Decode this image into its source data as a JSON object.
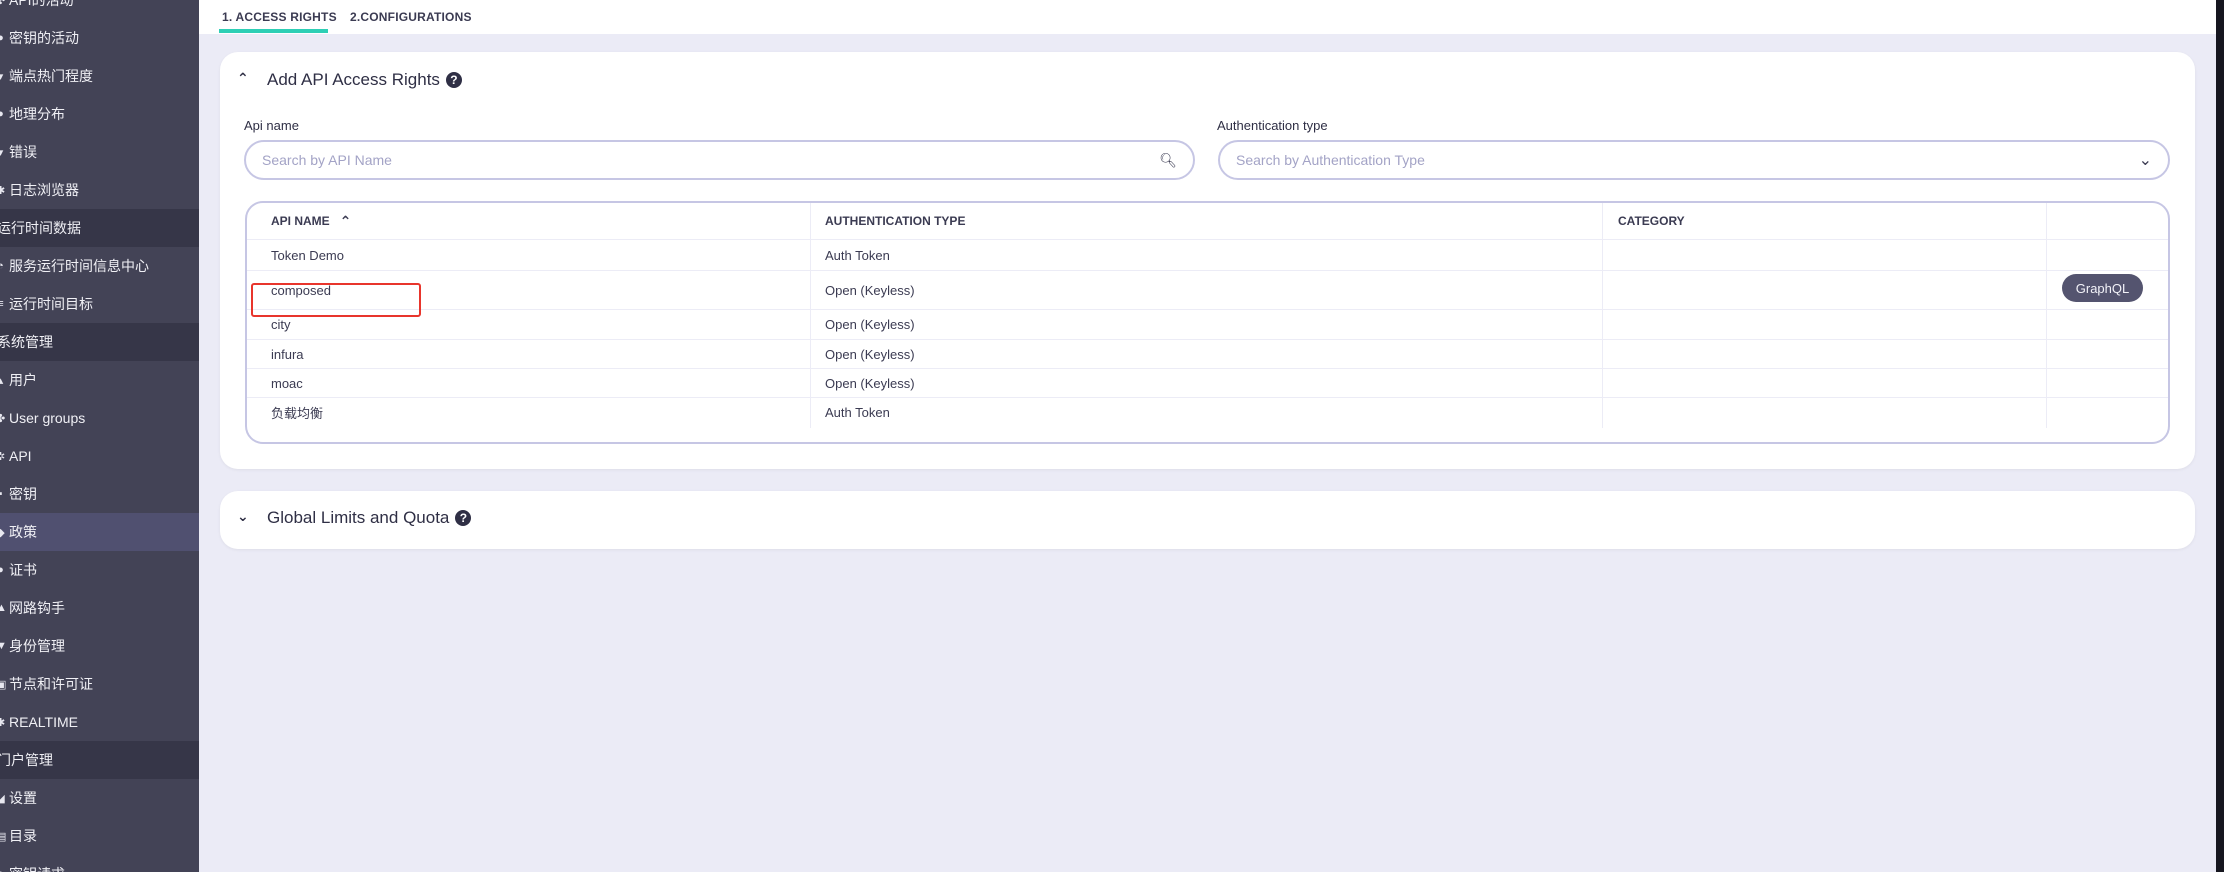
{
  "sidebar": {
    "items": [
      {
        "label": "API的活动",
        "icon": "activity-icon",
        "type": "item"
      },
      {
        "label": "密钥的活动",
        "icon": "key-icon",
        "type": "item"
      },
      {
        "label": "端点热门程度",
        "icon": "flame-icon",
        "type": "item"
      },
      {
        "label": "地理分布",
        "icon": "globe-icon",
        "type": "item"
      },
      {
        "label": "错误",
        "icon": "error-icon",
        "type": "item"
      },
      {
        "label": "日志浏览器",
        "icon": "log-icon",
        "type": "item"
      },
      {
        "label": "运行时间数据",
        "type": "header"
      },
      {
        "label": "服务运行时间信息中心",
        "icon": "dashboard-icon",
        "type": "item"
      },
      {
        "label": "运行时间目标",
        "icon": "list-icon",
        "type": "item"
      },
      {
        "label": "系统管理",
        "type": "header"
      },
      {
        "label": "用户",
        "icon": "user-icon",
        "type": "item"
      },
      {
        "label": "User groups",
        "icon": "users-icon",
        "type": "item"
      },
      {
        "label": "API",
        "icon": "gear-icon",
        "type": "item"
      },
      {
        "label": "密钥",
        "icon": "lock-icon",
        "type": "item"
      },
      {
        "label": "政策",
        "icon": "policy-icon",
        "type": "item",
        "active": true
      },
      {
        "label": "证书",
        "icon": "certificate-icon",
        "type": "item"
      },
      {
        "label": "网路钩手",
        "icon": "webhook-icon",
        "type": "item"
      },
      {
        "label": "身份管理",
        "icon": "shield-icon",
        "type": "item"
      },
      {
        "label": "节点和许可证",
        "icon": "node-icon",
        "type": "item"
      },
      {
        "label": "REALTIME",
        "icon": "realtime-icon",
        "type": "item"
      },
      {
        "label": "门户管理",
        "type": "header"
      },
      {
        "label": "设置",
        "icon": "wrench-icon",
        "type": "item"
      },
      {
        "label": "目录",
        "icon": "catalog-icon",
        "type": "item"
      },
      {
        "label": "密钥请求",
        "icon": "key-request-icon",
        "type": "item"
      }
    ]
  },
  "tabs": [
    {
      "label": "1. ACCESS RIGHTS",
      "active": true
    },
    {
      "label": "2.CONFIGURATIONS",
      "active": false
    }
  ],
  "access_card": {
    "title": "Add API Access Rights",
    "api_name_label": "Api name",
    "api_name_placeholder": "Search by API Name",
    "auth_type_label": "Authentication type",
    "auth_type_placeholder": "Search by Authentication Type",
    "table": {
      "headers": [
        "API NAME",
        "AUTHENTICATION TYPE",
        "CATEGORY",
        ""
      ],
      "sort_column": "API NAME",
      "sort_direction": "ascending",
      "rows": [
        {
          "name": "Token Demo",
          "auth": "Auth Token",
          "category": "",
          "badge": "",
          "highlighted": true
        },
        {
          "name": "composed",
          "auth": "Open (Keyless)",
          "category": "",
          "badge": "GraphQL"
        },
        {
          "name": "city",
          "auth": "Open (Keyless)",
          "category": "",
          "badge": ""
        },
        {
          "name": "infura",
          "auth": "Open (Keyless)",
          "category": "",
          "badge": ""
        },
        {
          "name": "moac",
          "auth": "Open (Keyless)",
          "category": "",
          "badge": ""
        },
        {
          "name": "负载均衡",
          "auth": "Auth Token",
          "category": "",
          "badge": ""
        }
      ]
    }
  },
  "limits_card": {
    "title": "Global Limits and Quota"
  },
  "colors": {
    "accent": "#2ecfb5",
    "sidebar": "#434356",
    "highlight": "#e8352c",
    "badge": "#54546f"
  }
}
